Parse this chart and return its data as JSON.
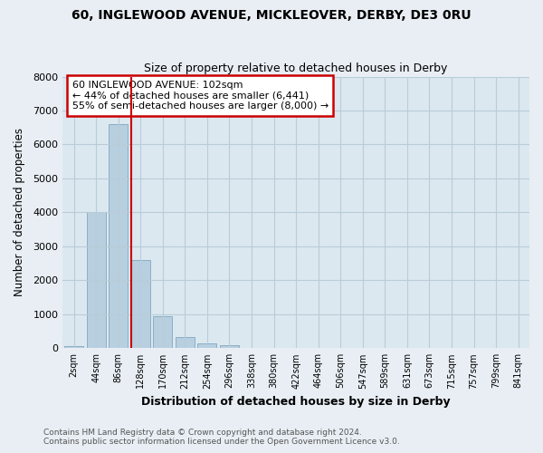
{
  "title": "60, INGLEWOOD AVENUE, MICKLEOVER, DERBY, DE3 0RU",
  "subtitle": "Size of property relative to detached houses in Derby",
  "xlabel": "Distribution of detached houses by size in Derby",
  "ylabel": "Number of detached properties",
  "bar_labels": [
    "2sqm",
    "44sqm",
    "86sqm",
    "128sqm",
    "170sqm",
    "212sqm",
    "254sqm",
    "296sqm",
    "338sqm",
    "380sqm",
    "422sqm",
    "464sqm",
    "506sqm",
    "547sqm",
    "589sqm",
    "631sqm",
    "673sqm",
    "715sqm",
    "757sqm",
    "799sqm",
    "841sqm"
  ],
  "bar_values": [
    50,
    4000,
    6600,
    2600,
    950,
    320,
    140,
    80,
    0,
    0,
    0,
    0,
    0,
    0,
    0,
    0,
    0,
    0,
    0,
    0,
    0
  ],
  "bar_color": "#b8cfe0",
  "bar_edge_color": "#8aaec8",
  "ylim": [
    0,
    8000
  ],
  "yticks": [
    0,
    1000,
    2000,
    3000,
    4000,
    5000,
    6000,
    7000,
    8000
  ],
  "property_line_x": 2.58,
  "property_line_color": "#cc0000",
  "annotation_text": "60 INGLEWOOD AVENUE: 102sqm\n← 44% of detached houses are smaller (6,441)\n55% of semi-detached houses are larger (8,000) →",
  "annotation_box_color": "#cc0000",
  "footer_line1": "Contains HM Land Registry data © Crown copyright and database right 2024.",
  "footer_line2": "Contains public sector information licensed under the Open Government Licence v3.0.",
  "bg_color": "#e8eef4",
  "plot_bg_color": "#dce8f0",
  "grid_color": "#b8ccd8"
}
